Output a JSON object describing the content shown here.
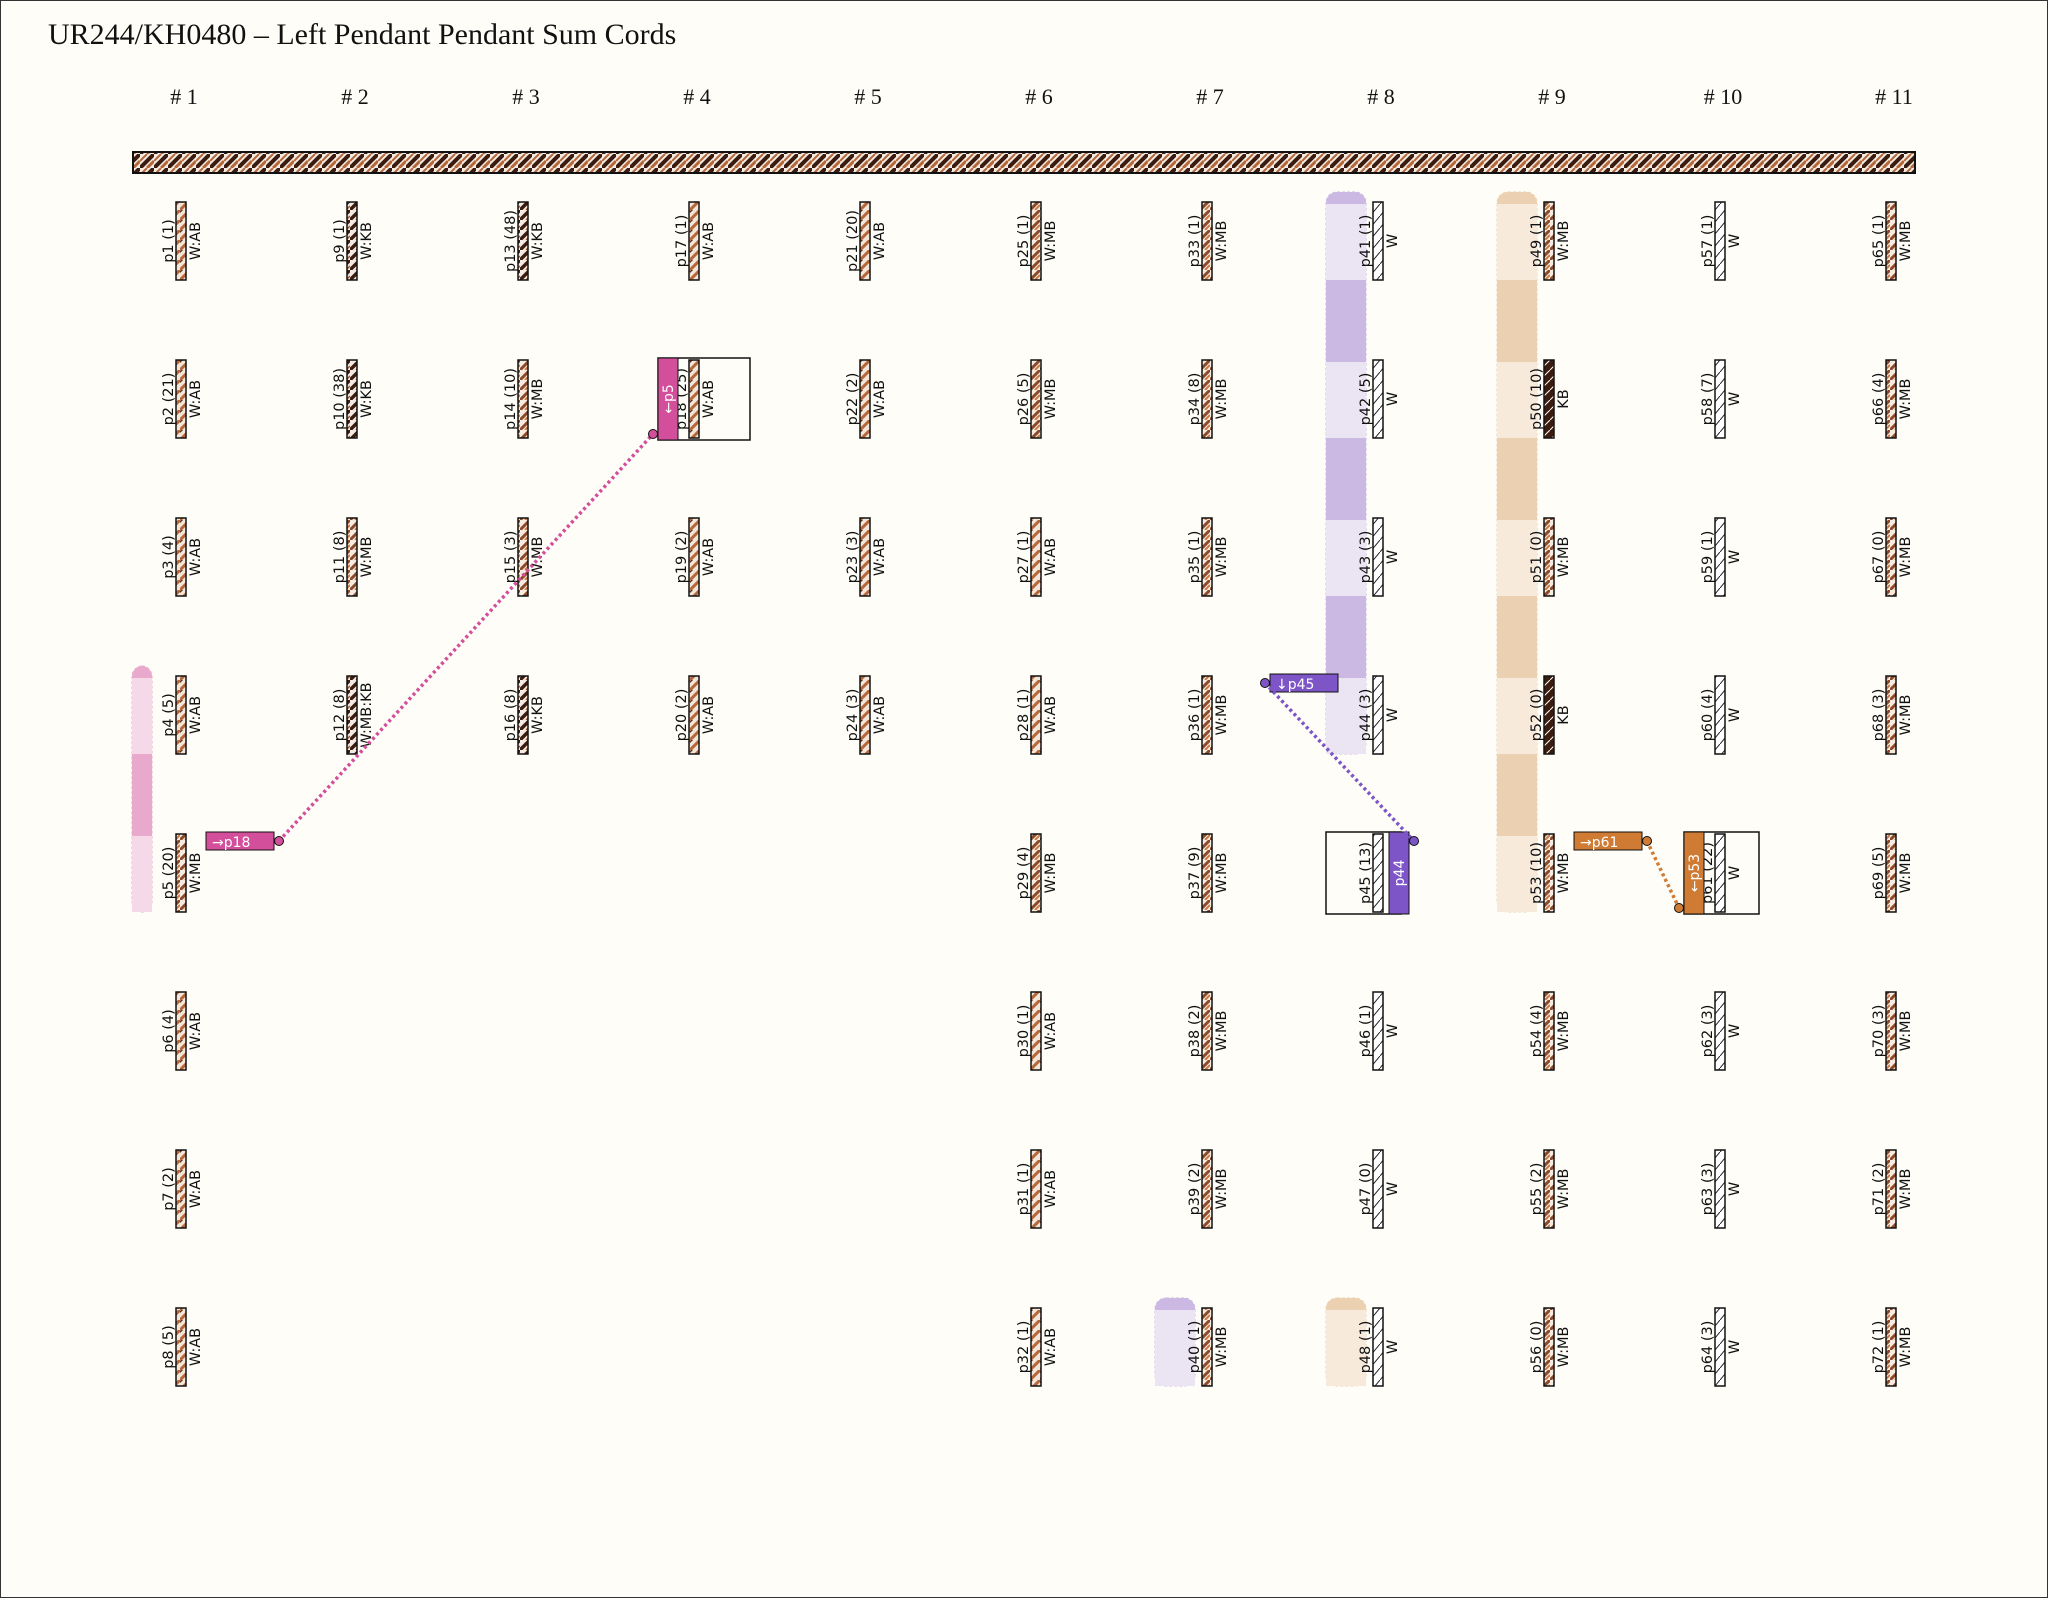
{
  "title": "UR244/KH0480 – Left Pendant Pendant Sum Cords",
  "colors": {
    "background": "#fefdf7",
    "cord_brown": "#b5673a",
    "cord_dark": "#3b1c0f",
    "pink": "#d34f9b",
    "purple": "#7d55c7",
    "orange": "#cf7b33",
    "band_purple": "#cbb9e3",
    "band_purple_light": "#ebe4f3",
    "band_orange": "#ebd0b1",
    "band_orange_light": "#f8eadb",
    "band_pink": "#e9a9cc",
    "band_pink_light": "#f6d9e8"
  },
  "columns": [
    "# 1",
    "# 2",
    "# 3",
    "# 4",
    "# 5",
    "# 6",
    "# 7",
    "# 8",
    "# 9",
    "# 10",
    "# 11"
  ],
  "cords": [
    {
      "label": "p1 (1)",
      "color": "W:AB",
      "col": 1,
      "row": 1,
      "pattern": "AB"
    },
    {
      "label": "p2 (21)",
      "color": "W:AB",
      "col": 1,
      "row": 2,
      "pattern": "AB"
    },
    {
      "label": "p3 (4)",
      "color": "W:AB",
      "col": 1,
      "row": 3,
      "pattern": "AB"
    },
    {
      "label": "p4 (5)",
      "color": "W:AB",
      "col": 1,
      "row": 4,
      "pattern": "AB"
    },
    {
      "label": "p5 (20)",
      "color": "W:MB",
      "col": 1,
      "row": 5,
      "pattern": "MB"
    },
    {
      "label": "p6 (4)",
      "color": "W:AB",
      "col": 1,
      "row": 6,
      "pattern": "AB"
    },
    {
      "label": "p7 (2)",
      "color": "W:AB",
      "col": 1,
      "row": 7,
      "pattern": "AB"
    },
    {
      "label": "p8 (5)",
      "color": "W:AB",
      "col": 1,
      "row": 8,
      "pattern": "AB"
    },
    {
      "label": "p9 (1)",
      "color": "W:KB",
      "col": 2,
      "row": 1,
      "pattern": "KB"
    },
    {
      "label": "p10 (38)",
      "color": "W:KB",
      "col": 2,
      "row": 2,
      "pattern": "KB"
    },
    {
      "label": "p11 (8)",
      "color": "W:MB",
      "col": 2,
      "row": 3,
      "pattern": "MB"
    },
    {
      "label": "p12 (8)",
      "color": "W:MB:KB",
      "col": 2,
      "row": 4,
      "pattern": "KB"
    },
    {
      "label": "p13 (48)",
      "color": "W:KB",
      "col": 3,
      "row": 1,
      "pattern": "KB"
    },
    {
      "label": "p14 (10)",
      "color": "W:MB",
      "col": 3,
      "row": 2,
      "pattern": "MB"
    },
    {
      "label": "p15 (3)",
      "color": "W:MB",
      "col": 3,
      "row": 3,
      "pattern": "MB"
    },
    {
      "label": "p16 (8)",
      "color": "W:KB",
      "col": 3,
      "row": 4,
      "pattern": "KB"
    },
    {
      "label": "p17 (1)",
      "color": "W:AB",
      "col": 4,
      "row": 1,
      "pattern": "AB"
    },
    {
      "label": "p18 (25)",
      "color": "W:AB",
      "col": 4,
      "row": 2,
      "pattern": "AB"
    },
    {
      "label": "p19 (2)",
      "color": "W:AB",
      "col": 4,
      "row": 3,
      "pattern": "AB"
    },
    {
      "label": "p20 (2)",
      "color": "W:AB",
      "col": 4,
      "row": 4,
      "pattern": "AB"
    },
    {
      "label": "p21 (20)",
      "color": "W:AB",
      "col": 5,
      "row": 1,
      "pattern": "AB"
    },
    {
      "label": "p22 (2)",
      "color": "W:AB",
      "col": 5,
      "row": 2,
      "pattern": "AB"
    },
    {
      "label": "p23 (3)",
      "color": "W:AB",
      "col": 5,
      "row": 3,
      "pattern": "AB"
    },
    {
      "label": "p24 (3)",
      "color": "W:AB",
      "col": 5,
      "row": 4,
      "pattern": "AB"
    },
    {
      "label": "p25 (1)",
      "color": "W:MB",
      "col": 6,
      "row": 1,
      "pattern": "MB"
    },
    {
      "label": "p26 (5)",
      "color": "W:MB",
      "col": 6,
      "row": 2,
      "pattern": "MB"
    },
    {
      "label": "p27 (1)",
      "color": "W:AB",
      "col": 6,
      "row": 3,
      "pattern": "AB"
    },
    {
      "label": "p28 (1)",
      "color": "W:AB",
      "col": 6,
      "row": 4,
      "pattern": "AB"
    },
    {
      "label": "p29 (4)",
      "color": "W:MB",
      "col": 6,
      "row": 5,
      "pattern": "MB"
    },
    {
      "label": "p30 (1)",
      "color": "W:AB",
      "col": 6,
      "row": 6,
      "pattern": "AB"
    },
    {
      "label": "p31 (1)",
      "color": "W:AB",
      "col": 6,
      "row": 7,
      "pattern": "AB"
    },
    {
      "label": "p32 (1)",
      "color": "W:AB",
      "col": 6,
      "row": 8,
      "pattern": "AB"
    },
    {
      "label": "p33 (1)",
      "color": "W:MB",
      "col": 7,
      "row": 1,
      "pattern": "MB"
    },
    {
      "label": "p34 (8)",
      "color": "W:MB",
      "col": 7,
      "row": 2,
      "pattern": "MB"
    },
    {
      "label": "p35 (1)",
      "color": "W:MB",
      "col": 7,
      "row": 3,
      "pattern": "MB"
    },
    {
      "label": "p36 (1)",
      "color": "W:MB",
      "col": 7,
      "row": 4,
      "pattern": "MB"
    },
    {
      "label": "p37 (9)",
      "color": "W:MB",
      "col": 7,
      "row": 5,
      "pattern": "MB"
    },
    {
      "label": "p38 (2)",
      "color": "W:MB",
      "col": 7,
      "row": 6,
      "pattern": "MB"
    },
    {
      "label": "p39 (2)",
      "color": "W:MB",
      "col": 7,
      "row": 7,
      "pattern": "MB"
    },
    {
      "label": "p40 (1)",
      "color": "W:MB",
      "col": 7,
      "row": 8,
      "pattern": "MB"
    },
    {
      "label": "p41 (1)",
      "color": "W",
      "col": 8,
      "row": 1,
      "pattern": "W"
    },
    {
      "label": "p42 (5)",
      "color": "W",
      "col": 8,
      "row": 2,
      "pattern": "W"
    },
    {
      "label": "p43 (3)",
      "color": "W",
      "col": 8,
      "row": 3,
      "pattern": "W"
    },
    {
      "label": "p44 (3)",
      "color": "W",
      "col": 8,
      "row": 4,
      "pattern": "W"
    },
    {
      "label": "p45 (13)",
      "color": "",
      "col": 8,
      "row": 5,
      "pattern": "W"
    },
    {
      "label": "p46 (1)",
      "color": "W",
      "col": 8,
      "row": 6,
      "pattern": "W"
    },
    {
      "label": "p47 (0)",
      "color": "W",
      "col": 8,
      "row": 7,
      "pattern": "W"
    },
    {
      "label": "p48 (1)",
      "color": "W",
      "col": 8,
      "row": 8,
      "pattern": "W"
    },
    {
      "label": "p49 (1)",
      "color": "W:MB",
      "col": 9,
      "row": 1,
      "pattern": "MB"
    },
    {
      "label": "p50 (10)",
      "color": "KB",
      "col": 9,
      "row": 2,
      "pattern": "K"
    },
    {
      "label": "p51 (0)",
      "color": "W:MB",
      "col": 9,
      "row": 3,
      "pattern": "MB"
    },
    {
      "label": "p52 (0)",
      "color": "KB",
      "col": 9,
      "row": 4,
      "pattern": "K"
    },
    {
      "label": "p53 (10)",
      "color": "W:MB",
      "col": 9,
      "row": 5,
      "pattern": "MB"
    },
    {
      "label": "p54 (4)",
      "color": "W:MB",
      "col": 9,
      "row": 6,
      "pattern": "MB"
    },
    {
      "label": "p55 (2)",
      "color": "W:MB",
      "col": 9,
      "row": 7,
      "pattern": "MB"
    },
    {
      "label": "p56 (0)",
      "color": "W:MB",
      "col": 9,
      "row": 8,
      "pattern": "MB"
    },
    {
      "label": "p57 (1)",
      "color": "W",
      "col": 10,
      "row": 1,
      "pattern": "W"
    },
    {
      "label": "p58 (7)",
      "color": "W",
      "col": 10,
      "row": 2,
      "pattern": "W"
    },
    {
      "label": "p59 (1)",
      "color": "W",
      "col": 10,
      "row": 3,
      "pattern": "W"
    },
    {
      "label": "p60 (4)",
      "color": "W",
      "col": 10,
      "row": 4,
      "pattern": "W"
    },
    {
      "label": "p61 (22)",
      "color": "W",
      "col": 10,
      "row": 5,
      "pattern": "W"
    },
    {
      "label": "p62 (3)",
      "color": "W",
      "col": 10,
      "row": 6,
      "pattern": "W"
    },
    {
      "label": "p63 (3)",
      "color": "W",
      "col": 10,
      "row": 7,
      "pattern": "W"
    },
    {
      "label": "p64 (3)",
      "color": "W",
      "col": 10,
      "row": 8,
      "pattern": "W"
    },
    {
      "label": "p65 (1)",
      "color": "W:MB",
      "col": 11,
      "row": 1,
      "pattern": "MB"
    },
    {
      "label": "p66 (4)",
      "color": "W:MB",
      "col": 11,
      "row": 2,
      "pattern": "MB"
    },
    {
      "label": "p67 (0)",
      "color": "W:MB",
      "col": 11,
      "row": 3,
      "pattern": "MB"
    },
    {
      "label": "p68 (3)",
      "color": "W:MB",
      "col": 11,
      "row": 4,
      "pattern": "MB"
    },
    {
      "label": "p69 (5)",
      "color": "W:MB",
      "col": 11,
      "row": 5,
      "pattern": "MB"
    },
    {
      "label": "p70 (3)",
      "color": "W:MB",
      "col": 11,
      "row": 6,
      "pattern": "MB"
    },
    {
      "label": "p71 (2)",
      "color": "W:MB",
      "col": 11,
      "row": 7,
      "pattern": "MB"
    },
    {
      "label": "p72 (1)",
      "color": "W:MB",
      "col": 11,
      "row": 8,
      "pattern": "MB"
    }
  ],
  "sum_groups": [
    {
      "color": "pink",
      "col": 1,
      "rows": [
        4,
        5
      ],
      "target": "p18",
      "target_tag": "→p18",
      "source_tag": "←p5",
      "source": "p5"
    },
    {
      "color": "purple",
      "col": 8,
      "rows": [
        1,
        2,
        3,
        4
      ],
      "target": "p45",
      "target_tag": "↓p45",
      "source_tag": "p44",
      "source": "p44"
    },
    {
      "color": "orange",
      "col": 9,
      "rows": [
        1,
        2,
        3,
        4,
        5
      ],
      "target": "p61",
      "target_tag": "→p61",
      "source_tag": "←p53",
      "source": "p53"
    }
  ],
  "minor_groups": [
    {
      "color": "purple",
      "col": 7,
      "rows": [
        8
      ]
    },
    {
      "color": "orange",
      "col": 8,
      "rows": [
        8
      ]
    }
  ]
}
